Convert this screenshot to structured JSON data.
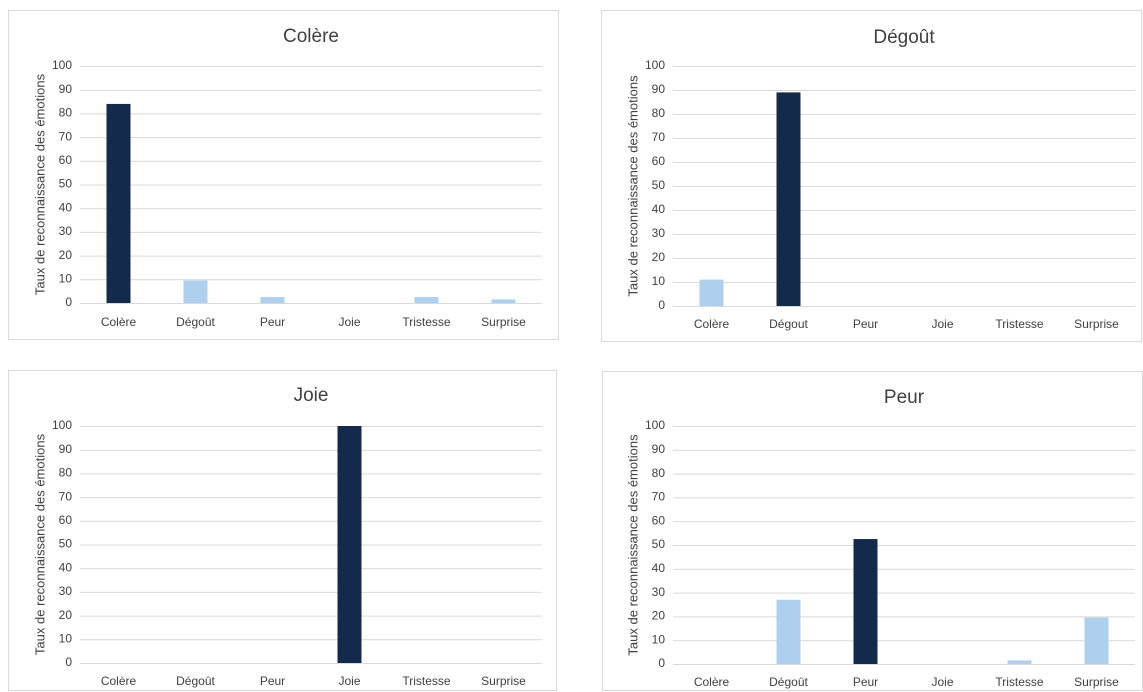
{
  "colors": {
    "target": "#142a4b",
    "other": "#aed0ee"
  },
  "chart_data": [
    {
      "type": "bar",
      "title": "Colère",
      "ylabel": "Taux de reconnaissance des émotions",
      "xlabel": "",
      "categories": [
        "Colère",
        "Dégoût",
        "Peur",
        "Joie",
        "Tristesse",
        "Surprise"
      ],
      "values": [
        84,
        9.5,
        2.5,
        0,
        2.5,
        1.5
      ],
      "ylim": [
        0,
        100
      ],
      "yticks": [
        "0",
        "10",
        "20",
        "30",
        "40",
        "50",
        "60",
        "70",
        "80",
        "90",
        "100"
      ],
      "highlight_index": 0,
      "grid": true,
      "legend": false
    },
    {
      "type": "bar",
      "title": "Dégoût",
      "ylabel": "Taux de reconnaissance des émotions",
      "xlabel": "",
      "categories": [
        "Colère",
        "Dégout",
        "Peur",
        "Joie",
        "Tristesse",
        "Surprise"
      ],
      "values": [
        11,
        89,
        0,
        0,
        0,
        0
      ],
      "ylim": [
        0,
        100
      ],
      "yticks": [
        "0",
        "10",
        "20",
        "30",
        "40",
        "50",
        "60",
        "70",
        "80",
        "90",
        "100"
      ],
      "highlight_index": 1,
      "grid": true,
      "legend": false
    },
    {
      "type": "bar",
      "title": "Joie",
      "ylabel": "Taux de reconnaissance des émotions",
      "xlabel": "",
      "categories": [
        "Colère",
        "Dégoût",
        "Peur",
        "Joie",
        "Tristesse",
        "Surprise"
      ],
      "values": [
        0,
        0,
        0,
        100,
        0,
        0
      ],
      "ylim": [
        0,
        100
      ],
      "yticks": [
        "0",
        "10",
        "20",
        "30",
        "40",
        "50",
        "60",
        "70",
        "80",
        "90",
        "100"
      ],
      "highlight_index": 3,
      "grid": true,
      "legend": false
    },
    {
      "type": "bar",
      "title": "Peur",
      "ylabel": "Taux de reconnaissance des émotions",
      "xlabel": "",
      "categories": [
        "Colère",
        "Dégoût",
        "Peur",
        "Joie",
        "Tristesse",
        "Surprise"
      ],
      "values": [
        0,
        27,
        52.5,
        0,
        1.5,
        19.5
      ],
      "ylim": [
        0,
        100
      ],
      "yticks": [
        "0",
        "10",
        "20",
        "30",
        "40",
        "50",
        "60",
        "70",
        "80",
        "90",
        "100"
      ],
      "highlight_index": 2,
      "grid": true,
      "legend": false
    }
  ]
}
